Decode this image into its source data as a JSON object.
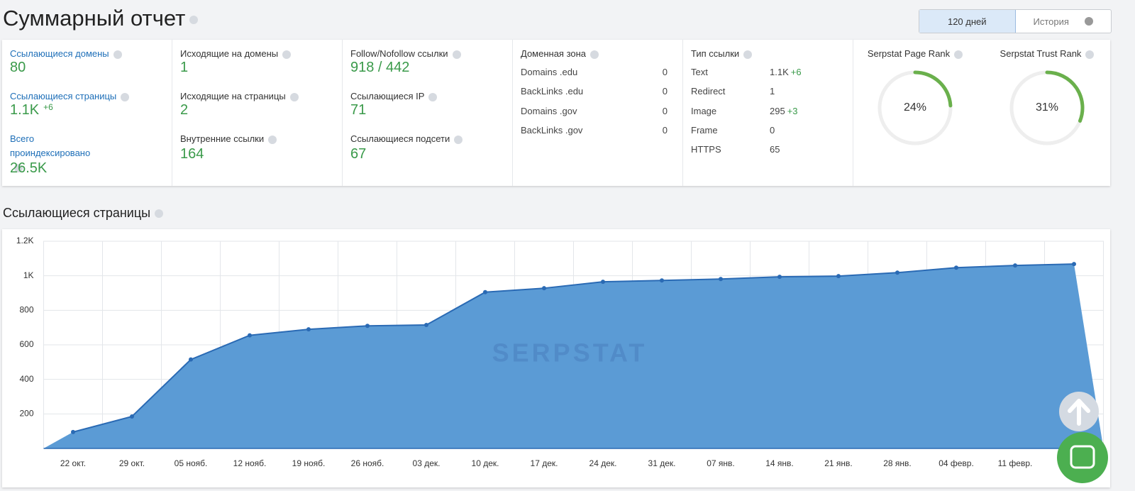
{
  "header": {
    "title": "Суммарный отчет",
    "tabs": [
      "120 дней",
      "История"
    ]
  },
  "stats": {
    "columns": [
      {
        "items": [
          {
            "label": "Ссылающиеся домены",
            "value": "80"
          },
          {
            "label": "Ссылающиеся страницы",
            "value": "1.1K",
            "delta": "+6"
          },
          {
            "label": "Всего проиндексировано",
            "value": "26.5K"
          }
        ]
      },
      {
        "items": [
          {
            "label": "Исходящие на домены",
            "value": "1"
          },
          {
            "label": "Исходящие на страницы",
            "value": "2"
          },
          {
            "label": "Внутренние ссылки",
            "value": "164"
          }
        ]
      },
      {
        "items": [
          {
            "label": "Follow/Nofollow ссылки",
            "value": "918  / 442"
          },
          {
            "label": "Ссылающиеся IP",
            "value": "71"
          },
          {
            "label": "Ссылающиеся подсети",
            "value": "67"
          }
        ]
      }
    ],
    "domain_zone": {
      "title": "Доменная зона",
      "rows": [
        [
          "Domains .edu",
          "0"
        ],
        [
          "BackLinks .edu",
          "0"
        ],
        [
          "Domains .gov",
          "0"
        ],
        [
          "BackLinks .gov",
          "0"
        ]
      ]
    },
    "link_type": {
      "title": "Тип ссылки",
      "rows": [
        [
          "Text",
          "1.1K",
          "+6"
        ],
        [
          "Redirect",
          "1"
        ],
        [
          "Image",
          "295",
          "+3"
        ],
        [
          "Frame",
          "0"
        ],
        [
          "HTTPS",
          "65"
        ]
      ]
    },
    "ranks": [
      {
        "name": "Serpstat Page Rank",
        "value": 24,
        "label": "24%"
      },
      {
        "name": "Serpstat Trust Rank",
        "value": 31,
        "label": "31%"
      }
    ]
  },
  "chart_data": {
    "type": "area",
    "title": "Ссылающиеся страницы",
    "watermark": "SERPSTAT",
    "categories": [
      "22 окт.",
      "29 окт.",
      "05 нояб.",
      "12 нояб.",
      "19 нояб.",
      "26 нояб.",
      "03 дек.",
      "10 дек.",
      "17 дек.",
      "24 дек.",
      "31 дек.",
      "07 янв.",
      "14 янв.",
      "21 янв.",
      "28 янв.",
      "04 февр.",
      "11 февр.",
      null
    ],
    "values": [
      95,
      185,
      515,
      655,
      690,
      710,
      715,
      905,
      928,
      965,
      973,
      981,
      994,
      998,
      1018,
      1047,
      1060,
      1068
    ],
    "color": "#5b9bd5",
    "line_color": "#2a6ab4",
    "ylim": [
      0,
      1200
    ],
    "yticks": [
      200,
      400,
      600,
      800,
      {
        "value": 1000,
        "label": "1K"
      },
      {
        "value": 1200,
        "label": "1.2K"
      }
    ],
    "grid": true
  }
}
